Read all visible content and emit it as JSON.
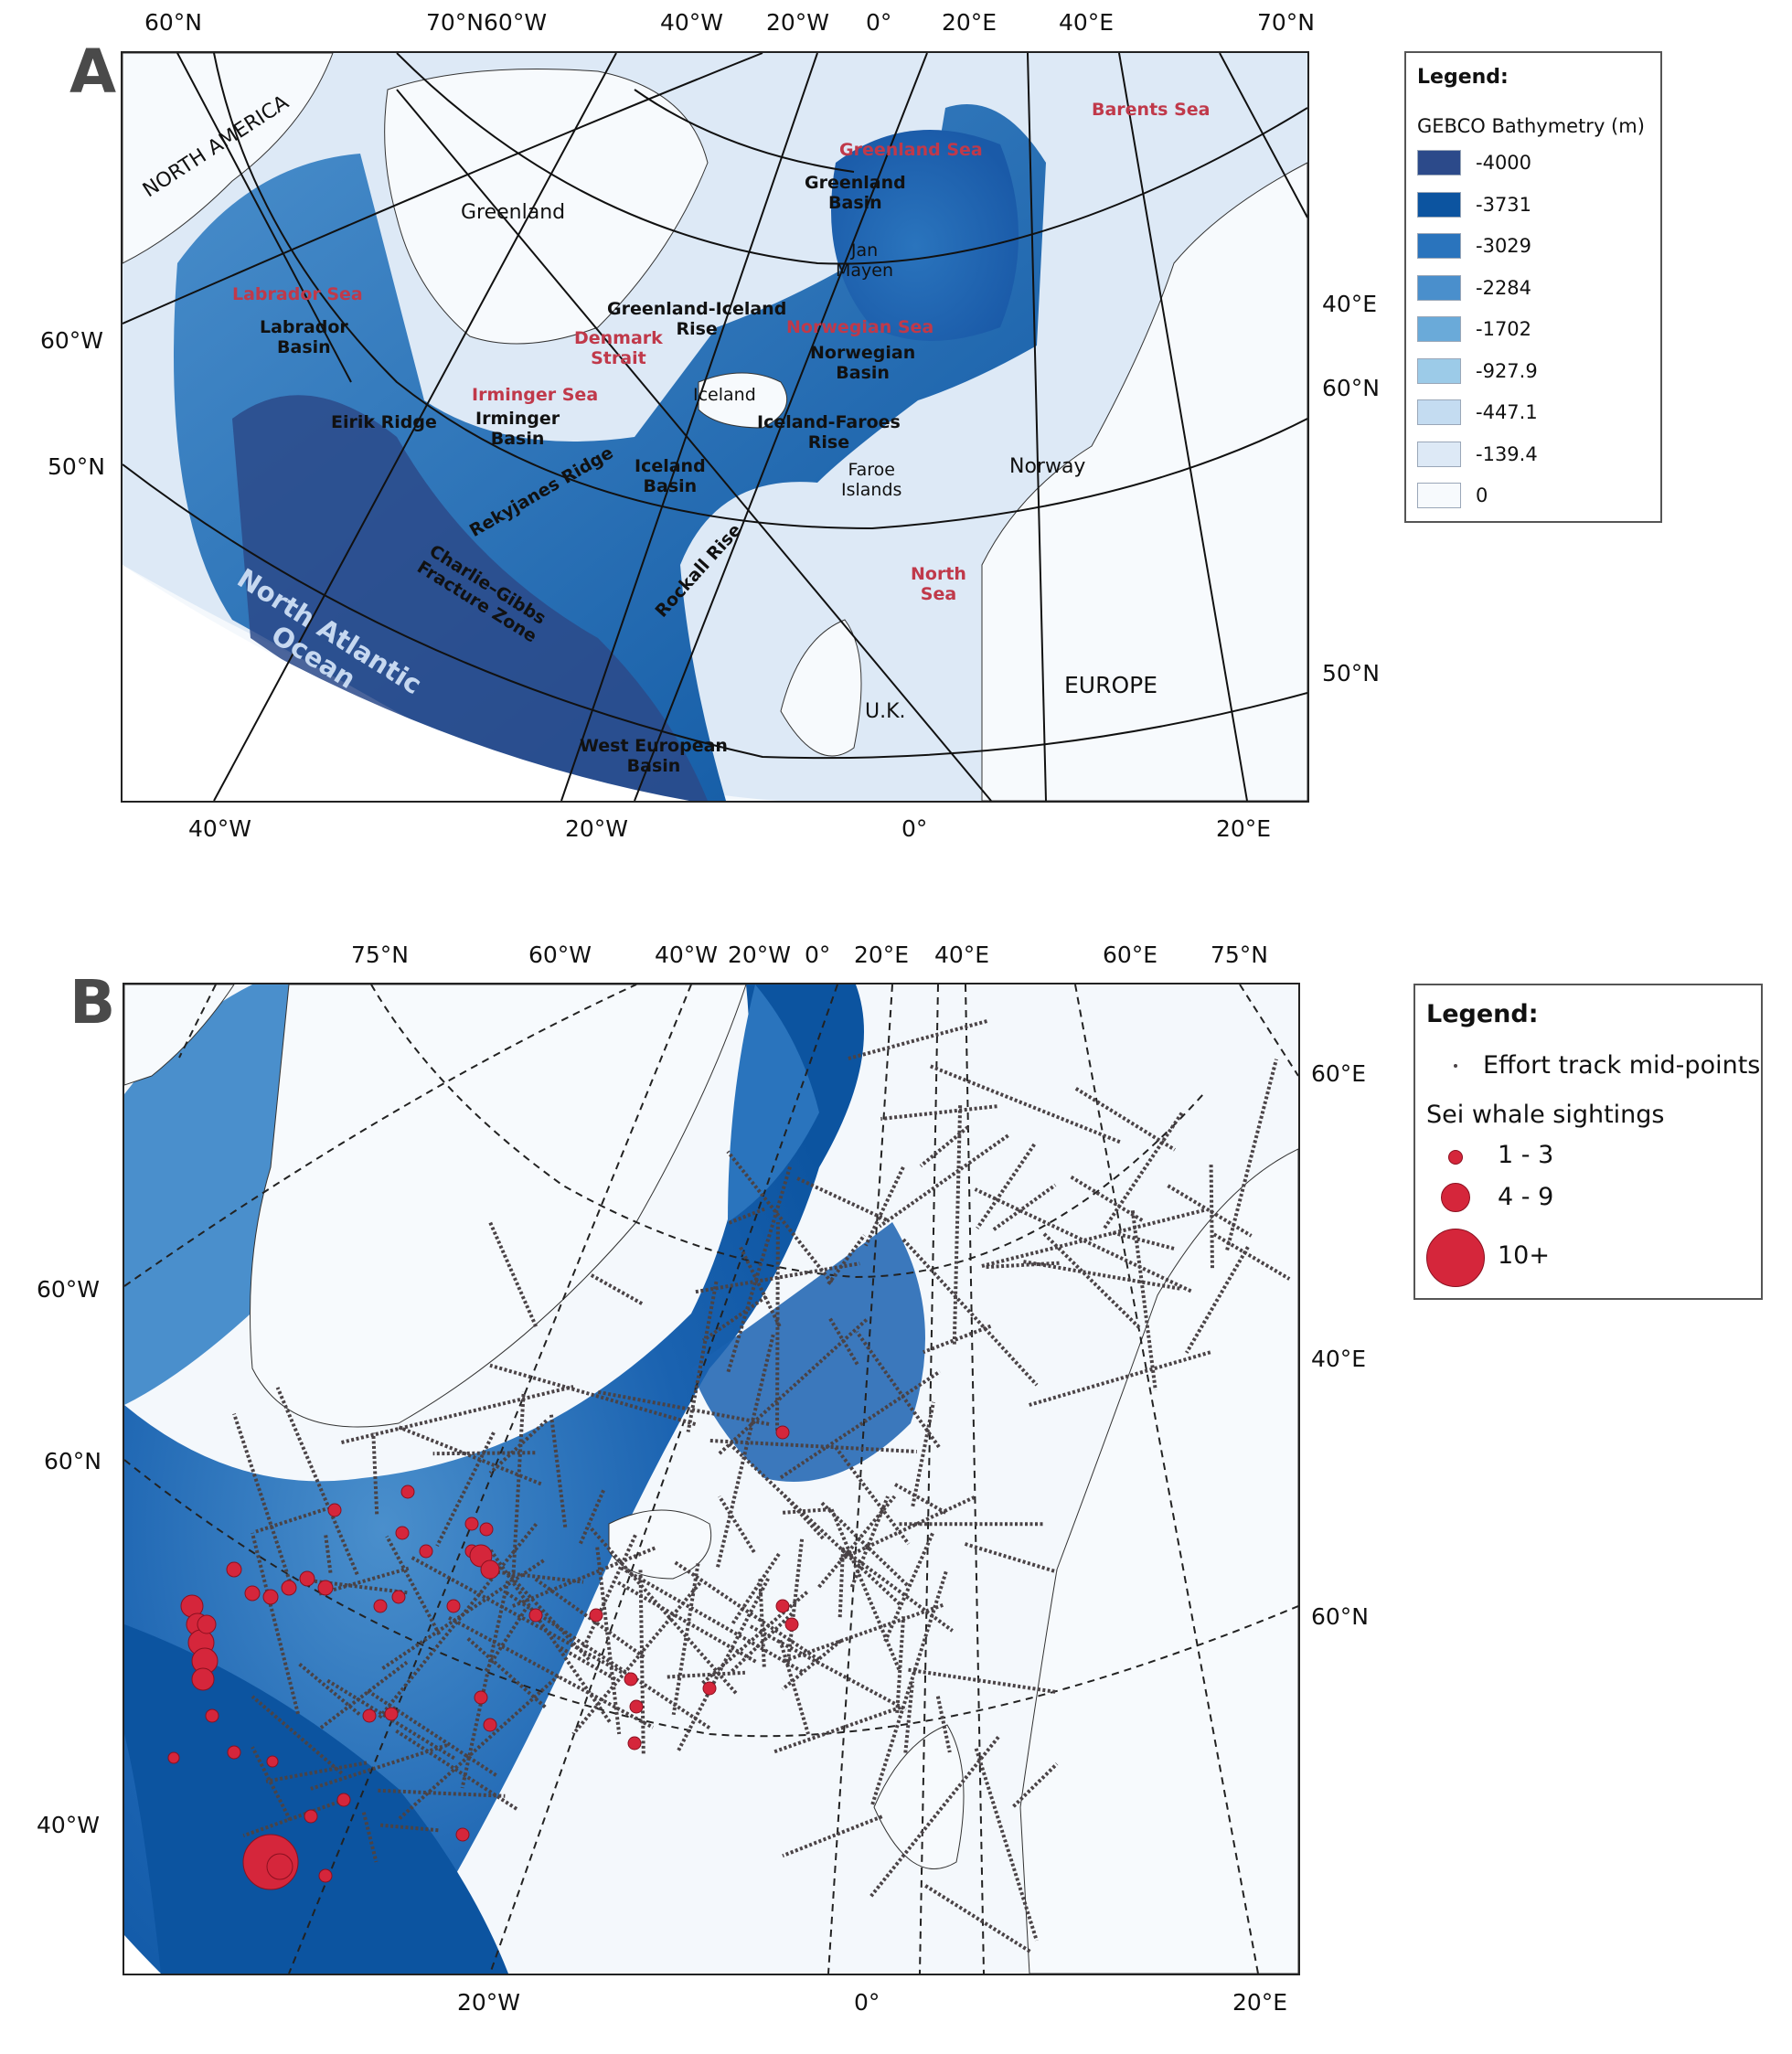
{
  "panel_a": {
    "letter": "A",
    "top_coords": [
      "60°N",
      "70°N60°W",
      "40°W",
      "20°W",
      "0°",
      "20°E",
      "40°E",
      "70°N"
    ],
    "bottom_coords": [
      "40°W",
      "20°W",
      "0°",
      "20°E"
    ],
    "left_coords": [
      "60°W",
      "50°N"
    ],
    "right_coords": [
      "40°E",
      "60°N",
      "50°N"
    ],
    "labels": {
      "north_america": "NORTH AMERICA",
      "greenland": "Greenland",
      "labrador_sea": "Labrador Sea",
      "labrador_basin_1": "Labrador",
      "labrador_basin_2": "Basin",
      "greenland_sea": "Greenland Sea",
      "greenland_basin_1": "Greenland",
      "greenland_basin_2": "Basin",
      "barents_sea": "Barents Sea",
      "jan_mayen_1": "Jan",
      "jan_mayen_2": "Mayen",
      "greenland_iceland_rise_1": "Greenland-Iceland",
      "greenland_iceland_rise_2": "Rise",
      "denmark_strait_1": "Denmark",
      "denmark_strait_2": "Strait",
      "norwegian_sea": "Norwegian Sea",
      "norwegian_basin_1": "Norwegian",
      "norwegian_basin_2": "Basin",
      "irminger_sea": "Irminger Sea",
      "irminger_basin_1": "Irminger",
      "irminger_basin_2": "Basin",
      "iceland": "Iceland",
      "eirik_ridge": "Eirik Ridge",
      "iceland_faroes_rise_1": "Iceland-Faroes",
      "iceland_faroes_rise_2": "Rise",
      "iceland_basin_1": "Iceland",
      "iceland_basin_2": "Basin",
      "faroe_islands_1": "Faroe",
      "faroe_islands_2": "Islands",
      "norway": "Norway",
      "reykjanes_ridge": "Rekyjanes Ridge",
      "north_sea_1": "North",
      "north_sea_2": "Sea",
      "charlie_gibbs_1": "Charlie–Gibbs",
      "charlie_gibbs_2": "Fracture Zone",
      "rockall_rise": "Rockall Rise",
      "north_atlantic_1": "North Atlantic",
      "north_atlantic_2": "Ocean",
      "uk": "U.K.",
      "europe": "EUROPE",
      "west_european_basin_1": "West European",
      "west_european_basin_2": "Basin"
    },
    "legend": {
      "title": "Legend:",
      "subtitle": "GEBCO Bathymetry (m)",
      "items": [
        {
          "label": "-4000",
          "color": "#2c4a8a"
        },
        {
          "label": "-3731",
          "color": "#0c54a0"
        },
        {
          "label": "-3029",
          "color": "#2a74bd"
        },
        {
          "label": "-2284",
          "color": "#4a8fcc"
        },
        {
          "label": "-1702",
          "color": "#6aaad9"
        },
        {
          "label": "-927.9",
          "color": "#9ccbe8"
        },
        {
          "label": "-447.1",
          "color": "#c4dcf1"
        },
        {
          "label": "-139.4",
          "color": "#dde9f6"
        },
        {
          "label": "0",
          "color": "#f7fafd"
        }
      ]
    }
  },
  "panel_b": {
    "letter": "B",
    "top_coords": [
      "75°N",
      "60°W",
      "40°W",
      "20°W",
      "0°",
      "20°E",
      "40°E",
      "60°E",
      "75°N"
    ],
    "bottom_coords": [
      "20°W",
      "0°",
      "20°E"
    ],
    "left_coords": [
      "60°W",
      "60°N",
      "40°W"
    ],
    "right_coords": [
      "60°E",
      "40°E",
      "60°N"
    ],
    "legend": {
      "title": "Legend:",
      "track_label": "Effort track mid-points",
      "sightings_title": "Sei whale sightings",
      "size_classes": [
        {
          "label": "1 - 3"
        },
        {
          "label": "4 - 9"
        },
        {
          "label": "10+"
        }
      ],
      "track_color": "#4a4346",
      "sighting_color": "#d5263b"
    }
  }
}
